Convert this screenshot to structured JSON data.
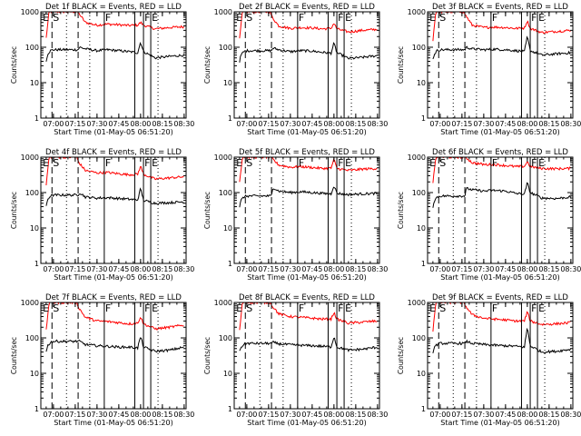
{
  "chart_data": {
    "type": "line",
    "shared": {
      "xlabel": "Start Time (01-May-05 06:51:20)",
      "ylabel": "Counts/sec",
      "x_tick_labels": [
        "07:00",
        "07:15",
        "07:30",
        "07:45",
        "08:00",
        "08:15",
        "08:30"
      ],
      "y_tick_labels": [
        "1",
        "10",
        "100",
        "1000"
      ],
      "y_scale": "log",
      "ylim": [
        1,
        1000
      ],
      "xlim": [
        "06:51:20",
        "08:31:20"
      ],
      "colors": {
        "events": "#000000",
        "lld": "#ff0000"
      },
      "markers": [
        {
          "label": "E",
          "time": "06:52",
          "style": "none"
        },
        {
          "label": "S",
          "time": "06:59",
          "style": "dashed"
        },
        {
          "label": "",
          "time": "07:09",
          "style": "dotted"
        },
        {
          "label": "",
          "time": "07:17",
          "style": "dashed"
        },
        {
          "label": "",
          "time": "07:25",
          "style": "dotted"
        },
        {
          "label": "F",
          "time": "07:35",
          "style": "solid"
        },
        {
          "label": "",
          "time": "07:56",
          "style": "solid"
        },
        {
          "label": "F",
          "time": "08:02",
          "style": "solid"
        },
        {
          "label": "E",
          "time": "08:07",
          "style": "solid"
        },
        {
          "label": "",
          "time": "08:12",
          "style": "dotted"
        }
      ]
    },
    "panels": [
      {
        "title": "Det 1f BLACK = Events, RED = LLD",
        "series": [
          {
            "color": "#ff0000",
            "x": [
              "06:55",
              "06:57",
              "07:00",
              "07:05",
              "07:10",
              "07:16",
              "07:17:30",
              "07:22",
              "07:30",
              "07:37",
              "07:45",
              "07:52",
              "07:58",
              "08:00",
              "08:02",
              "08:10",
              "08:20",
              "08:30"
            ],
            "y": [
              180,
              1000,
              1000,
              1000,
              1000,
              1000,
              900,
              500,
              420,
              450,
              430,
              410,
              420,
              500,
              420,
              330,
              360,
              380
            ]
          },
          {
            "color": "#000000",
            "x": [
              "06:55",
              "06:56",
              "06:58",
              "07:00",
              "07:17",
              "07:18",
              "07:22",
              "07:30",
              "07:37",
              "07:45",
              "07:52",
              "07:58",
              "08:00",
              "08:02",
              "08:10",
              "08:20",
              "08:30"
            ],
            "y": [
              40,
              65,
              80,
              85,
              85,
              100,
              90,
              80,
              85,
              80,
              75,
              70,
              140,
              75,
              50,
              55,
              60
            ]
          }
        ]
      },
      {
        "title": "Det 2f BLACK = Events, RED = LLD",
        "series": [
          {
            "color": "#ff0000",
            "x": [
              "06:55",
              "06:57",
              "07:00",
              "07:05",
              "07:10",
              "07:16",
              "07:17:30",
              "07:22",
              "07:30",
              "07:37",
              "07:45",
              "07:52",
              "07:58",
              "08:00",
              "08:02",
              "08:10",
              "08:20",
              "08:30"
            ],
            "y": [
              170,
              1000,
              1000,
              1000,
              1000,
              1000,
              700,
              400,
              340,
              360,
              350,
              330,
              340,
              480,
              330,
              270,
              300,
              320
            ]
          },
          {
            "color": "#000000",
            "x": [
              "06:55",
              "06:56",
              "06:58",
              "07:00",
              "07:17",
              "07:18",
              "07:22",
              "07:30",
              "07:37",
              "07:45",
              "07:52",
              "07:58",
              "08:00",
              "08:02",
              "08:10",
              "08:20",
              "08:30"
            ],
            "y": [
              40,
              60,
              75,
              80,
              80,
              95,
              85,
              75,
              80,
              78,
              72,
              68,
              130,
              70,
              48,
              52,
              58
            ]
          }
        ]
      },
      {
        "title": "Det 3f BLACK = Events, RED = LLD",
        "series": [
          {
            "color": "#ff0000",
            "x": [
              "06:55",
              "06:57",
              "07:00",
              "07:05",
              "07:10",
              "07:16",
              "07:17:30",
              "07:22",
              "07:30",
              "07:37",
              "07:45",
              "07:52",
              "07:58",
              "08:00",
              "08:02",
              "08:10",
              "08:20",
              "08:30"
            ],
            "y": [
              160,
              1000,
              1000,
              1000,
              1000,
              1000,
              800,
              420,
              360,
              370,
              360,
              340,
              350,
              560,
              340,
              260,
              280,
              300
            ]
          },
          {
            "color": "#000000",
            "x": [
              "06:55",
              "06:56",
              "06:58",
              "07:00",
              "07:17",
              "07:18",
              "07:22",
              "07:30",
              "07:37",
              "07:45",
              "07:52",
              "07:58",
              "08:00",
              "08:02",
              "08:10",
              "08:20",
              "08:30"
            ],
            "y": [
              45,
              65,
              80,
              85,
              85,
              100,
              90,
              85,
              88,
              85,
              80,
              75,
              200,
              80,
              60,
              65,
              70
            ]
          }
        ]
      },
      {
        "title": "Det 4f BLACK = Events, RED = LLD",
        "series": [
          {
            "color": "#ff0000",
            "x": [
              "06:55",
              "06:57",
              "07:00",
              "07:05",
              "07:10",
              "07:16",
              "07:17:30",
              "07:22",
              "07:30",
              "07:37",
              "07:45",
              "07:52",
              "07:58",
              "08:00",
              "08:02",
              "08:10",
              "08:20",
              "08:30"
            ],
            "y": [
              160,
              1000,
              1000,
              1000,
              1000,
              1000,
              700,
              420,
              360,
              370,
              340,
              320,
              330,
              560,
              330,
              240,
              260,
              280
            ]
          },
          {
            "color": "#000000",
            "x": [
              "06:55",
              "06:56",
              "06:58",
              "07:00",
              "07:17",
              "07:18",
              "07:22",
              "07:30",
              "07:37",
              "07:45",
              "07:52",
              "07:58",
              "08:00",
              "08:02",
              "08:10",
              "08:20",
              "08:30"
            ],
            "y": [
              40,
              65,
              80,
              85,
              85,
              100,
              75,
              70,
              72,
              68,
              65,
              62,
              130,
              60,
              50,
              52,
              55
            ]
          }
        ]
      },
      {
        "title": "Det 5f BLACK = Events, RED = LLD",
        "series": [
          {
            "color": "#ff0000",
            "x": [
              "06:55",
              "06:57",
              "07:00",
              "07:05",
              "07:10",
              "07:16",
              "07:17:30",
              "07:22",
              "07:30",
              "07:37",
              "07:45",
              "07:52",
              "07:58",
              "08:00",
              "08:02",
              "08:10",
              "08:20",
              "08:30"
            ],
            "y": [
              200,
              1000,
              1000,
              1000,
              1000,
              1000,
              900,
              600,
              520,
              540,
              510,
              480,
              490,
              850,
              480,
              420,
              460,
              480
            ]
          },
          {
            "color": "#000000",
            "x": [
              "06:55",
              "06:56",
              "06:58",
              "07:00",
              "07:17",
              "07:18",
              "07:22",
              "07:30",
              "07:37",
              "07:45",
              "07:52",
              "07:58",
              "08:00",
              "08:02",
              "08:10",
              "08:20",
              "08:30"
            ],
            "y": [
              40,
              60,
              75,
              80,
              80,
              140,
              110,
              100,
              105,
              100,
              95,
              92,
              160,
              95,
              88,
              92,
              95
            ]
          }
        ]
      },
      {
        "title": "Det 6f BLACK = Events, RED = LLD",
        "series": [
          {
            "color": "#ff0000",
            "x": [
              "06:55",
              "06:57",
              "07:00",
              "07:05",
              "07:10",
              "07:16",
              "07:17:30",
              "07:22",
              "07:30",
              "07:37",
              "07:45",
              "07:52",
              "07:58",
              "08:00",
              "08:02",
              "08:10",
              "08:20",
              "08:30"
            ],
            "y": [
              180,
              1000,
              1000,
              1000,
              1000,
              1000,
              1000,
              700,
              620,
              620,
              580,
              540,
              550,
              750,
              540,
              480,
              470,
              480
            ]
          },
          {
            "color": "#000000",
            "x": [
              "06:55",
              "06:56",
              "06:58",
              "07:00",
              "07:17",
              "07:18",
              "07:22",
              "07:30",
              "07:37",
              "07:45",
              "07:52",
              "07:58",
              "08:00",
              "08:02",
              "08:10",
              "08:20",
              "08:30"
            ],
            "y": [
              40,
              60,
              75,
              80,
              80,
              130,
              120,
              110,
              115,
              110,
              95,
              90,
              190,
              100,
              70,
              68,
              75
            ]
          }
        ]
      },
      {
        "title": "Det 7f BLACK = Events, RED = LLD",
        "series": [
          {
            "color": "#ff0000",
            "x": [
              "06:55",
              "06:57",
              "07:00",
              "07:05",
              "07:10",
              "07:16",
              "07:17:30",
              "07:22",
              "07:30",
              "07:37",
              "07:45",
              "07:52",
              "07:58",
              "08:00",
              "08:02",
              "08:10",
              "08:20",
              "08:30"
            ],
            "y": [
              160,
              1000,
              1000,
              1000,
              1000,
              1000,
              700,
              380,
              300,
              290,
              270,
              250,
              260,
              400,
              250,
              180,
              200,
              230
            ]
          },
          {
            "color": "#000000",
            "x": [
              "06:55",
              "06:56",
              "06:58",
              "07:00",
              "07:17",
              "07:18",
              "07:22",
              "07:30",
              "07:37",
              "07:45",
              "07:52",
              "07:58",
              "08:00",
              "08:02",
              "08:10",
              "08:20",
              "08:30"
            ],
            "y": [
              40,
              60,
              75,
              80,
              80,
              80,
              65,
              60,
              58,
              55,
              55,
              52,
              110,
              55,
              42,
              45,
              55
            ]
          }
        ]
      },
      {
        "title": "Det 8f BLACK = Events, RED = LLD",
        "series": [
          {
            "color": "#ff0000",
            "x": [
              "06:55",
              "06:57",
              "07:00",
              "07:05",
              "07:10",
              "07:16",
              "07:17:30",
              "07:22",
              "07:30",
              "07:37",
              "07:45",
              "07:52",
              "07:58",
              "08:00",
              "08:02",
              "08:10",
              "08:20",
              "08:30"
            ],
            "y": [
              160,
              1000,
              1000,
              1000,
              1000,
              1000,
              800,
              480,
              400,
              380,
              360,
              340,
              340,
              520,
              340,
              260,
              280,
              300
            ]
          },
          {
            "color": "#000000",
            "x": [
              "06:55",
              "06:56",
              "06:58",
              "07:00",
              "07:17",
              "07:18",
              "07:22",
              "07:30",
              "07:37",
              "07:45",
              "07:52",
              "07:58",
              "08:00",
              "08:02",
              "08:10",
              "08:20",
              "08:30"
            ],
            "y": [
              40,
              55,
              65,
              70,
              70,
              75,
              68,
              64,
              62,
              60,
              58,
              55,
              110,
              55,
              45,
              48,
              55
            ]
          }
        ]
      },
      {
        "title": "Det 9f BLACK = Events, RED = LLD",
        "series": [
          {
            "color": "#ff0000",
            "x": [
              "06:55",
              "06:57",
              "07:00",
              "07:05",
              "07:10",
              "07:16",
              "07:17:30",
              "07:22",
              "07:30",
              "07:37",
              "07:45",
              "07:52",
              "07:58",
              "08:00",
              "08:02",
              "08:10",
              "08:20",
              "08:30"
            ],
            "y": [
              160,
              1000,
              1000,
              1000,
              1000,
              1000,
              800,
              450,
              360,
              340,
              320,
              300,
              300,
              550,
              300,
              240,
              250,
              270
            ]
          },
          {
            "color": "#000000",
            "x": [
              "06:55",
              "06:56",
              "06:58",
              "07:00",
              "07:17",
              "07:18",
              "07:22",
              "07:30",
              "07:37",
              "07:45",
              "07:52",
              "07:58",
              "08:00",
              "08:02",
              "08:10",
              "08:20",
              "08:30"
            ],
            "y": [
              40,
              55,
              65,
              70,
              70,
              80,
              70,
              65,
              62,
              60,
              58,
              55,
              200,
              60,
              40,
              42,
              48
            ]
          }
        ]
      }
    ]
  }
}
